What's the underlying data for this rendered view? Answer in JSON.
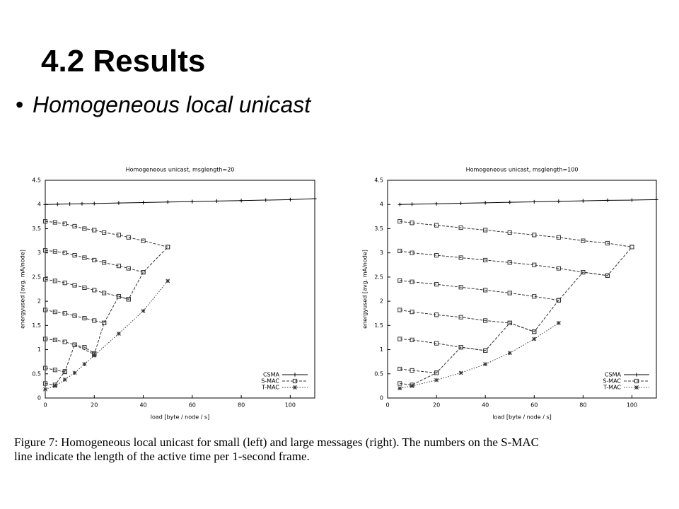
{
  "slide": {
    "title": "4.2 Results",
    "bullet": "Homogeneous local unicast"
  },
  "caption": {
    "lines": [
      "Figure 7: Homogeneous local unicast for small (left) and large messages (right). The numbers on the S-MAC",
      "line indicate the length of the active time per 1-second frame."
    ]
  },
  "chart_data": [
    {
      "type": "line",
      "title": "Homogeneous unicast, msglength=20",
      "x_label": "load [byte / node / s]",
      "y_label": "energyused [avg. mA/node]",
      "xlim": [
        0,
        110
      ],
      "xticks": [
        0,
        20,
        40,
        60,
        80,
        100
      ],
      "ylim": [
        0,
        4.5
      ],
      "yticks": [
        0,
        0.5,
        1,
        1.5,
        2,
        2.5,
        3,
        3.5,
        4,
        4.5
      ],
      "legend": "lower right",
      "series": [
        {
          "name": "CSMA",
          "color": "#000000",
          "line_style": "solid",
          "marker": "plus",
          "x": [
            0,
            5,
            10,
            15,
            20,
            30,
            40,
            50,
            60,
            70,
            80,
            90,
            100,
            110
          ],
          "values": [
            4.0,
            4.005,
            4.01,
            4.015,
            4.02,
            4.03,
            4.04,
            4.05,
            4.06,
            4.07,
            4.08,
            4.09,
            4.1,
            4.12
          ]
        },
        {
          "name": "S-MAC",
          "color": "#333333",
          "line_style": "dashed",
          "marker": "square",
          "x": [
            0,
            4,
            8,
            12,
            16,
            20,
            24,
            30,
            34,
            40,
            50,
            null,
            0,
            4,
            8,
            12,
            16,
            20,
            24,
            30,
            34,
            40,
            null,
            0,
            4,
            8,
            12,
            16,
            20,
            24,
            30,
            34,
            null,
            0,
            4,
            8,
            12,
            16,
            20,
            24,
            null,
            0,
            4,
            8,
            12,
            16,
            20,
            null,
            0,
            4,
            8,
            null,
            0,
            4,
            8,
            12,
            20,
            24,
            30,
            34,
            40,
            50
          ],
          "values": [
            3.65,
            3.63,
            3.6,
            3.55,
            3.5,
            3.47,
            3.42,
            3.37,
            3.32,
            3.25,
            3.12,
            null,
            3.05,
            3.03,
            3.0,
            2.95,
            2.9,
            2.85,
            2.8,
            2.73,
            2.68,
            2.6,
            null,
            2.45,
            2.42,
            2.38,
            2.33,
            2.28,
            2.23,
            2.17,
            2.1,
            2.04,
            null,
            1.82,
            1.78,
            1.75,
            1.7,
            1.65,
            1.6,
            1.55,
            null,
            1.22,
            1.2,
            1.16,
            1.1,
            1.05,
            0.92,
            null,
            0.62,
            0.58,
            0.54,
            null,
            0.3,
            0.27,
            0.55,
            1.1,
            0.9,
            1.55,
            2.1,
            2.04,
            2.6,
            3.12
          ]
        },
        {
          "name": "T-MAC",
          "color": "#333333",
          "line_style": "dotted",
          "marker": "star",
          "x": [
            0,
            4,
            8,
            12,
            16,
            20,
            30,
            40,
            50
          ],
          "values": [
            0.18,
            0.25,
            0.38,
            0.52,
            0.7,
            0.88,
            1.33,
            1.8,
            2.42
          ]
        }
      ]
    },
    {
      "type": "line",
      "title": "Homogeneous unicast, msglength=100",
      "x_label": "load [byte / node / s]",
      "y_label": "energyused [avg. mA/node]",
      "xlim": [
        0,
        110
      ],
      "xticks": [
        0,
        20,
        40,
        60,
        80,
        100
      ],
      "ylim": [
        0,
        4.5
      ],
      "yticks": [
        0,
        0.5,
        1,
        1.5,
        2,
        2.5,
        3,
        3.5,
        4,
        4.5
      ],
      "legend": "lower right",
      "series": [
        {
          "name": "CSMA",
          "color": "#000000",
          "line_style": "solid",
          "marker": "plus",
          "x": [
            5,
            10,
            20,
            30,
            40,
            50,
            60,
            70,
            80,
            90,
            100,
            110
          ],
          "values": [
            4.0,
            4.005,
            4.015,
            4.025,
            4.035,
            4.045,
            4.055,
            4.065,
            4.075,
            4.085,
            4.09,
            4.1
          ]
        },
        {
          "name": "S-MAC",
          "color": "#333333",
          "line_style": "dashed",
          "marker": "square",
          "x": [
            5,
            10,
            20,
            30,
            40,
            50,
            60,
            70,
            80,
            90,
            100,
            null,
            5,
            10,
            20,
            30,
            40,
            50,
            60,
            70,
            80,
            90,
            null,
            5,
            10,
            20,
            30,
            40,
            50,
            60,
            70,
            null,
            5,
            10,
            20,
            30,
            40,
            50,
            60,
            null,
            5,
            10,
            20,
            30,
            40,
            null,
            5,
            10,
            20,
            null,
            5,
            10,
            20,
            30,
            40,
            50,
            60,
            70,
            80,
            90,
            100
          ],
          "values": [
            3.65,
            3.62,
            3.57,
            3.52,
            3.47,
            3.42,
            3.37,
            3.32,
            3.25,
            3.2,
            3.12,
            null,
            3.04,
            3.0,
            2.95,
            2.9,
            2.85,
            2.8,
            2.75,
            2.68,
            2.6,
            2.53,
            null,
            2.43,
            2.4,
            2.35,
            2.29,
            2.23,
            2.17,
            2.1,
            2.02,
            null,
            1.82,
            1.78,
            1.72,
            1.67,
            1.6,
            1.55,
            1.37,
            null,
            1.22,
            1.2,
            1.13,
            1.05,
            0.98,
            null,
            0.6,
            0.57,
            0.52,
            null,
            0.3,
            0.27,
            0.52,
            1.05,
            0.98,
            1.55,
            1.37,
            2.02,
            2.6,
            2.53,
            3.12
          ]
        },
        {
          "name": "T-MAC",
          "color": "#333333",
          "line_style": "dotted",
          "marker": "star",
          "x": [
            5,
            10,
            20,
            30,
            40,
            50,
            60,
            70
          ],
          "values": [
            0.2,
            0.25,
            0.37,
            0.52,
            0.7,
            0.93,
            1.22,
            1.55
          ]
        }
      ]
    }
  ]
}
